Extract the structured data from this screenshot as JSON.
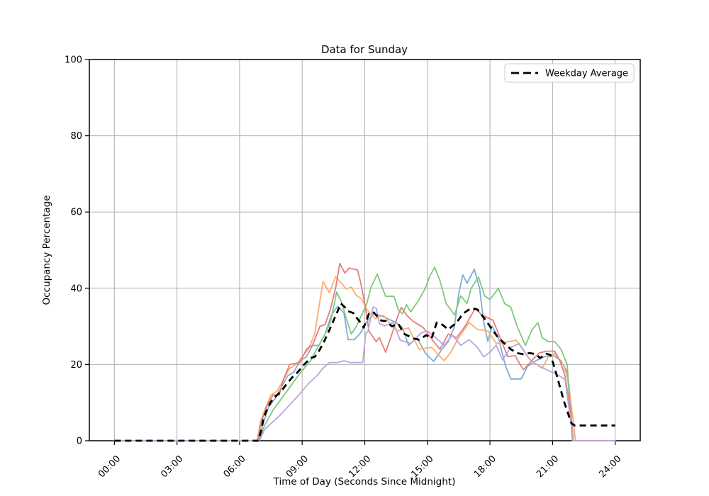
{
  "figure": {
    "title": "Data for Sunday",
    "xlabel": "Time of Day (Seconds Since Midnight)",
    "ylabel": "Occupancy Percentage",
    "legend": {
      "label": "Weekday Average"
    }
  },
  "chart_data": {
    "type": "line",
    "title": "Data for Sunday",
    "xlabel": "Time of Day (Seconds Since Midnight)",
    "ylabel": "Occupancy Percentage",
    "x_unit": "hours_since_midnight",
    "xlim_hours": [
      -1.2,
      25.2
    ],
    "ylim": [
      0,
      100
    ],
    "grid": true,
    "legend_position": "upper right",
    "legend_label": "Weekday Average",
    "xticks": {
      "hours": [
        0,
        3,
        6,
        9,
        12,
        15,
        18,
        21,
        24
      ],
      "labels": [
        "00:00",
        "03:00",
        "06:00",
        "09:00",
        "12:00",
        "15:00",
        "18:00",
        "21:00",
        "24:00"
      ]
    },
    "yticks": [
      0,
      20,
      40,
      60,
      80,
      100
    ],
    "colors": {
      "grid": "#b0b0b0",
      "axis": "#000000",
      "background": "#ffffff",
      "average": "#000000"
    },
    "series": [
      {
        "name": "day-line-blue",
        "color": "#7aaed6",
        "points": [
          [
            0,
            0
          ],
          [
            6.9,
            0
          ],
          [
            7.1,
            4
          ],
          [
            7.4,
            9
          ],
          [
            7.7,
            11
          ],
          [
            8.0,
            14
          ],
          [
            8.3,
            17
          ],
          [
            8.6,
            18
          ],
          [
            8.9,
            21
          ],
          [
            9.2,
            22
          ],
          [
            9.5,
            25
          ],
          [
            9.8,
            25
          ],
          [
            10.1,
            28
          ],
          [
            10.4,
            33
          ],
          [
            10.7,
            35.3
          ],
          [
            11.0,
            33.5
          ],
          [
            11.2,
            26.5
          ],
          [
            11.5,
            26.5
          ],
          [
            11.8,
            28.3
          ],
          [
            12.0,
            30.5
          ],
          [
            12.4,
            33.3
          ],
          [
            12.7,
            33
          ],
          [
            13.1,
            32
          ],
          [
            13.5,
            31
          ],
          [
            13.8,
            29.7
          ],
          [
            14.1,
            25
          ],
          [
            14.5,
            27
          ],
          [
            14.9,
            23
          ],
          [
            15.3,
            20.8
          ],
          [
            15.7,
            24
          ],
          [
            16.0,
            26
          ],
          [
            16.3,
            30
          ],
          [
            16.5,
            38.5
          ],
          [
            16.7,
            43.5
          ],
          [
            16.9,
            41.3
          ],
          [
            17.25,
            45
          ],
          [
            17.5,
            40
          ],
          [
            17.7,
            31
          ],
          [
            17.9,
            26
          ],
          [
            18.1,
            30.1
          ],
          [
            18.4,
            27
          ],
          [
            18.75,
            19.5
          ],
          [
            19.0,
            16.2
          ],
          [
            19.5,
            16.2
          ],
          [
            19.8,
            19.5
          ],
          [
            20.2,
            21
          ],
          [
            20.6,
            22
          ],
          [
            21.0,
            22.5
          ],
          [
            21.4,
            21
          ],
          [
            21.7,
            18
          ],
          [
            22.0,
            0
          ],
          [
            24,
            0
          ]
        ]
      },
      {
        "name": "day-line-orange",
        "color": "#fdae6b",
        "points": [
          [
            0,
            0
          ],
          [
            6.85,
            0
          ],
          [
            7.0,
            5
          ],
          [
            7.2,
            8
          ],
          [
            7.5,
            12
          ],
          [
            7.8,
            13
          ],
          [
            8.1,
            16
          ],
          [
            8.4,
            19
          ],
          [
            8.7,
            20
          ],
          [
            9.0,
            22
          ],
          [
            9.3,
            24
          ],
          [
            9.6,
            28
          ],
          [
            9.8,
            35
          ],
          [
            10.0,
            41.8
          ],
          [
            10.3,
            38.8
          ],
          [
            10.6,
            43
          ],
          [
            10.9,
            41.3
          ],
          [
            11.1,
            39.8
          ],
          [
            11.35,
            40.3
          ],
          [
            11.6,
            38.1
          ],
          [
            11.85,
            37.2
          ],
          [
            12.1,
            34.4
          ],
          [
            12.5,
            32
          ],
          [
            12.9,
            32.9
          ],
          [
            13.3,
            30
          ],
          [
            13.6,
            28.8
          ],
          [
            14.1,
            29.6
          ],
          [
            14.6,
            24
          ],
          [
            15.2,
            24.5
          ],
          [
            15.5,
            22.7
          ],
          [
            15.8,
            21
          ],
          [
            16.1,
            23
          ],
          [
            16.5,
            27
          ],
          [
            17.0,
            31
          ],
          [
            17.4,
            29.2
          ],
          [
            17.9,
            28.8
          ],
          [
            18.3,
            25.5
          ],
          [
            18.9,
            26
          ],
          [
            19.25,
            26.4
          ],
          [
            19.9,
            21.4
          ],
          [
            20.5,
            19
          ],
          [
            20.8,
            22
          ],
          [
            21.1,
            23
          ],
          [
            21.5,
            20
          ],
          [
            21.75,
            16
          ],
          [
            22.1,
            0
          ],
          [
            24,
            0
          ]
        ]
      },
      {
        "name": "day-line-green",
        "color": "#7ec87f",
        "points": [
          [
            0,
            0
          ],
          [
            6.9,
            0
          ],
          [
            7.2,
            4
          ],
          [
            7.6,
            8
          ],
          [
            8.0,
            11
          ],
          [
            8.4,
            14
          ],
          [
            8.8,
            17
          ],
          [
            9.1,
            19
          ],
          [
            9.4,
            21
          ],
          [
            9.8,
            25
          ],
          [
            10.1,
            28
          ],
          [
            10.35,
            31
          ],
          [
            10.5,
            35
          ],
          [
            10.65,
            39
          ],
          [
            10.9,
            36.2
          ],
          [
            11.1,
            32.3
          ],
          [
            11.35,
            28
          ],
          [
            11.6,
            30
          ],
          [
            11.85,
            33
          ],
          [
            12.1,
            36
          ],
          [
            12.3,
            40.3
          ],
          [
            12.6,
            43.7
          ],
          [
            12.8,
            40.7
          ],
          [
            13.0,
            37.9
          ],
          [
            13.4,
            37.9
          ],
          [
            13.6,
            34.4
          ],
          [
            13.8,
            33.3
          ],
          [
            14.0,
            35.7
          ],
          [
            14.2,
            33.8
          ],
          [
            14.6,
            37
          ],
          [
            14.9,
            40
          ],
          [
            15.1,
            43
          ],
          [
            15.35,
            45.5
          ],
          [
            15.6,
            42
          ],
          [
            15.9,
            36
          ],
          [
            16.3,
            33
          ],
          [
            16.6,
            38
          ],
          [
            16.9,
            36
          ],
          [
            17.1,
            40
          ],
          [
            17.45,
            42.9
          ],
          [
            17.75,
            38
          ],
          [
            18.0,
            37
          ],
          [
            18.4,
            40
          ],
          [
            18.7,
            36
          ],
          [
            19.0,
            35
          ],
          [
            19.3,
            30
          ],
          [
            19.7,
            25
          ],
          [
            20.0,
            29
          ],
          [
            20.3,
            31
          ],
          [
            20.5,
            27
          ],
          [
            20.8,
            26
          ],
          [
            21.1,
            26
          ],
          [
            21.4,
            24
          ],
          [
            21.7,
            20
          ],
          [
            21.95,
            0
          ],
          [
            24,
            0
          ]
        ]
      },
      {
        "name": "day-line-red",
        "color": "#e77c7c",
        "points": [
          [
            0,
            0
          ],
          [
            6.85,
            0
          ],
          [
            7.05,
            5
          ],
          [
            7.3,
            9
          ],
          [
            7.6,
            12
          ],
          [
            7.9,
            12
          ],
          [
            8.1,
            16
          ],
          [
            8.4,
            20
          ],
          [
            8.9,
            20.5
          ],
          [
            9.2,
            24
          ],
          [
            9.5,
            25.1
          ],
          [
            9.85,
            30
          ],
          [
            10.1,
            30.5
          ],
          [
            10.35,
            34.4
          ],
          [
            10.6,
            40
          ],
          [
            10.8,
            46.5
          ],
          [
            11.05,
            44
          ],
          [
            11.25,
            45.3
          ],
          [
            11.5,
            45
          ],
          [
            11.65,
            44.8
          ],
          [
            11.8,
            41.6
          ],
          [
            12.0,
            36
          ],
          [
            12.2,
            28.8
          ],
          [
            12.55,
            26
          ],
          [
            12.7,
            27
          ],
          [
            13.0,
            23.2
          ],
          [
            13.3,
            28
          ],
          [
            13.6,
            33
          ],
          [
            13.75,
            35
          ],
          [
            14.0,
            33
          ],
          [
            14.3,
            31.4
          ],
          [
            14.8,
            29.7
          ],
          [
            15.3,
            26
          ],
          [
            15.6,
            24
          ],
          [
            16.0,
            28
          ],
          [
            16.4,
            27
          ],
          [
            16.8,
            30
          ],
          [
            17.3,
            34.8
          ],
          [
            17.6,
            33
          ],
          [
            18.15,
            31.6
          ],
          [
            18.5,
            26.8
          ],
          [
            18.85,
            22.1
          ],
          [
            19.2,
            22.3
          ],
          [
            19.6,
            18.6
          ],
          [
            20.0,
            21
          ],
          [
            20.35,
            23
          ],
          [
            20.7,
            23.5
          ],
          [
            21.1,
            23.5
          ],
          [
            21.35,
            21
          ],
          [
            21.6,
            17
          ],
          [
            21.85,
            8
          ],
          [
            22.0,
            0
          ],
          [
            24,
            0
          ]
        ]
      },
      {
        "name": "day-line-purple",
        "color": "#b9a6dc",
        "points": [
          [
            0,
            0
          ],
          [
            6.95,
            0
          ],
          [
            7.2,
            3
          ],
          [
            7.5,
            4.5
          ],
          [
            8.0,
            7
          ],
          [
            8.5,
            10
          ],
          [
            9.0,
            13
          ],
          [
            9.3,
            15
          ],
          [
            9.7,
            17
          ],
          [
            10.0,
            19
          ],
          [
            10.3,
            20.5
          ],
          [
            10.7,
            20.5
          ],
          [
            11.0,
            21
          ],
          [
            11.3,
            20.5
          ],
          [
            11.6,
            20.5
          ],
          [
            11.9,
            20.5
          ],
          [
            12.05,
            28.3
          ],
          [
            12.15,
            28.6
          ],
          [
            12.4,
            35.1
          ],
          [
            12.55,
            34.8
          ],
          [
            12.7,
            30.7
          ],
          [
            12.95,
            30.1
          ],
          [
            13.35,
            31
          ],
          [
            13.7,
            26.4
          ],
          [
            14.2,
            25.5
          ],
          [
            14.7,
            28.3
          ],
          [
            15.0,
            28.8
          ],
          [
            15.4,
            27
          ],
          [
            15.8,
            25
          ],
          [
            16.2,
            27.7
          ],
          [
            16.6,
            25
          ],
          [
            17.0,
            26.5
          ],
          [
            17.4,
            24.5
          ],
          [
            17.7,
            22
          ],
          [
            18.0,
            23.2
          ],
          [
            18.3,
            25.1
          ],
          [
            18.6,
            21.2
          ],
          [
            19.0,
            24.5
          ],
          [
            19.4,
            25.5
          ],
          [
            19.8,
            22.1
          ],
          [
            20.0,
            20.8
          ],
          [
            20.4,
            19.5
          ],
          [
            20.8,
            18.4
          ],
          [
            21.2,
            17.5
          ],
          [
            21.6,
            16
          ],
          [
            22.0,
            0
          ],
          [
            24,
            0
          ]
        ]
      }
    ],
    "average": {
      "name": "Weekday Average",
      "color": "#000000",
      "dashed": true,
      "points": [
        [
          0,
          0
        ],
        [
          6.9,
          0
        ],
        [
          7.05,
          3
        ],
        [
          7.15,
          6
        ],
        [
          7.3,
          8
        ],
        [
          7.5,
          10.2
        ],
        [
          7.7,
          11.5
        ],
        [
          8.0,
          13
        ],
        [
          8.2,
          14.5
        ],
        [
          8.5,
          16.5
        ],
        [
          8.7,
          17.5
        ],
        [
          8.95,
          19
        ],
        [
          9.1,
          20
        ],
        [
          9.4,
          21.7
        ],
        [
          9.6,
          22
        ],
        [
          9.8,
          23.5
        ],
        [
          10.05,
          26
        ],
        [
          10.3,
          29
        ],
        [
          10.5,
          31.5
        ],
        [
          10.7,
          34
        ],
        [
          10.85,
          36
        ],
        [
          11.05,
          35
        ],
        [
          11.2,
          34
        ],
        [
          11.45,
          33.5
        ],
        [
          11.6,
          32.3
        ],
        [
          11.8,
          31
        ],
        [
          11.95,
          29.7
        ],
        [
          12.2,
          33.3
        ],
        [
          12.4,
          33.8
        ],
        [
          12.55,
          32.9
        ],
        [
          12.8,
          31.5
        ],
        [
          13.0,
          31.4
        ],
        [
          13.3,
          30
        ],
        [
          13.6,
          30.7
        ],
        [
          13.9,
          28
        ],
        [
          14.35,
          26.8
        ],
        [
          14.6,
          26.5
        ],
        [
          14.95,
          27.7
        ],
        [
          15.2,
          26.8
        ],
        [
          15.45,
          31
        ],
        [
          15.7,
          30.5
        ],
        [
          16.0,
          29.2
        ],
        [
          16.4,
          31
        ],
        [
          16.7,
          33.3
        ],
        [
          17.1,
          34.8
        ],
        [
          17.4,
          34.4
        ],
        [
          17.8,
          31.6
        ],
        [
          18.1,
          29.2
        ],
        [
          18.4,
          27
        ],
        [
          18.7,
          25.5
        ],
        [
          19.0,
          24
        ],
        [
          19.3,
          23
        ],
        [
          19.6,
          22.7
        ],
        [
          19.9,
          23
        ],
        [
          20.2,
          22.7
        ],
        [
          20.4,
          21.7
        ],
        [
          20.7,
          22.8
        ],
        [
          20.9,
          22.5
        ],
        [
          21.05,
          19.9
        ],
        [
          21.2,
          17.1
        ],
        [
          21.55,
          10.2
        ],
        [
          21.9,
          4.6
        ],
        [
          22.05,
          4
        ],
        [
          24,
          4
        ]
      ]
    }
  }
}
